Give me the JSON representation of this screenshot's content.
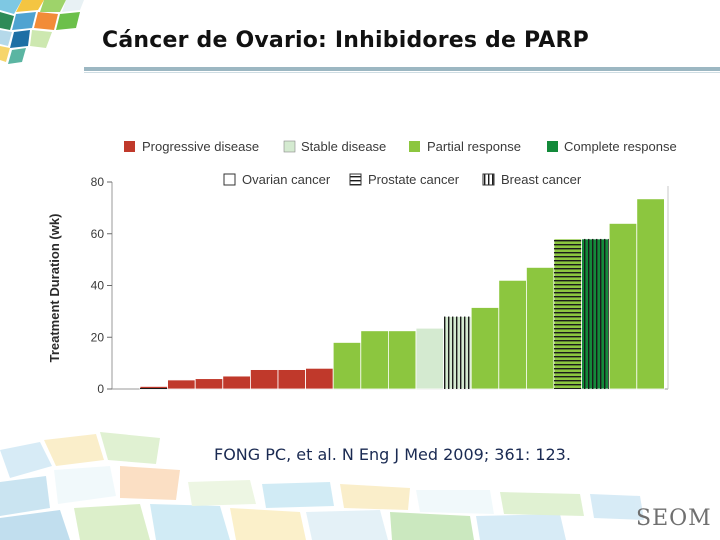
{
  "slide": {
    "title": "Cáncer de Ovario: Inhibidores de PARP",
    "citation": "FONG PC, et al. N Eng J Med 2009; 361: 123.",
    "logo": "SEOM"
  },
  "colors": {
    "progressive": "#c0392b",
    "stable": "#d4ead0",
    "partial": "#8cc63f",
    "complete": "#138a3a",
    "title_rule": "#9cb7c2"
  },
  "chart_data": {
    "type": "bar",
    "ylabel": "Treatment Duration (wk)",
    "xlabel": "",
    "ylim": [
      0,
      80
    ],
    "yticks": [
      0,
      20,
      40,
      60,
      80
    ],
    "legend_response": [
      {
        "key": "progressive",
        "label": "Progressive disease"
      },
      {
        "key": "stable",
        "label": "Stable disease"
      },
      {
        "key": "partial",
        "label": "Partial response"
      },
      {
        "key": "complete",
        "label": "Complete response"
      }
    ],
    "legend_cancer": [
      {
        "key": "ovarian",
        "label": "Ovarian cancer"
      },
      {
        "key": "prostate",
        "label": "Prostate cancer"
      },
      {
        "key": "breast",
        "label": "Breast cancer"
      }
    ],
    "bars": [
      {
        "value": 1,
        "response": "progressive",
        "cancer": "prostate"
      },
      {
        "value": 3.5,
        "response": "progressive",
        "cancer": "ovarian"
      },
      {
        "value": 4,
        "response": "progressive",
        "cancer": "ovarian"
      },
      {
        "value": 5,
        "response": "progressive",
        "cancer": "ovarian"
      },
      {
        "value": 7.5,
        "response": "progressive",
        "cancer": "ovarian"
      },
      {
        "value": 7.5,
        "response": "progressive",
        "cancer": "ovarian"
      },
      {
        "value": 8,
        "response": "progressive",
        "cancer": "ovarian"
      },
      {
        "value": 18,
        "response": "partial",
        "cancer": "ovarian"
      },
      {
        "value": 22.5,
        "response": "partial",
        "cancer": "ovarian"
      },
      {
        "value": 22.5,
        "response": "partial",
        "cancer": "ovarian"
      },
      {
        "value": 23.5,
        "response": "stable",
        "cancer": "ovarian"
      },
      {
        "value": 28,
        "response": "stable",
        "cancer": "breast"
      },
      {
        "value": 31.5,
        "response": "partial",
        "cancer": "ovarian"
      },
      {
        "value": 42,
        "response": "partial",
        "cancer": "ovarian"
      },
      {
        "value": 47,
        "response": "partial",
        "cancer": "ovarian"
      },
      {
        "value": 58,
        "response": "partial",
        "cancer": "prostate"
      },
      {
        "value": 58,
        "response": "complete",
        "cancer": "breast"
      },
      {
        "value": 64,
        "response": "partial",
        "cancer": "ovarian"
      },
      {
        "value": 73.5,
        "response": "partial",
        "cancer": "ovarian"
      }
    ]
  }
}
